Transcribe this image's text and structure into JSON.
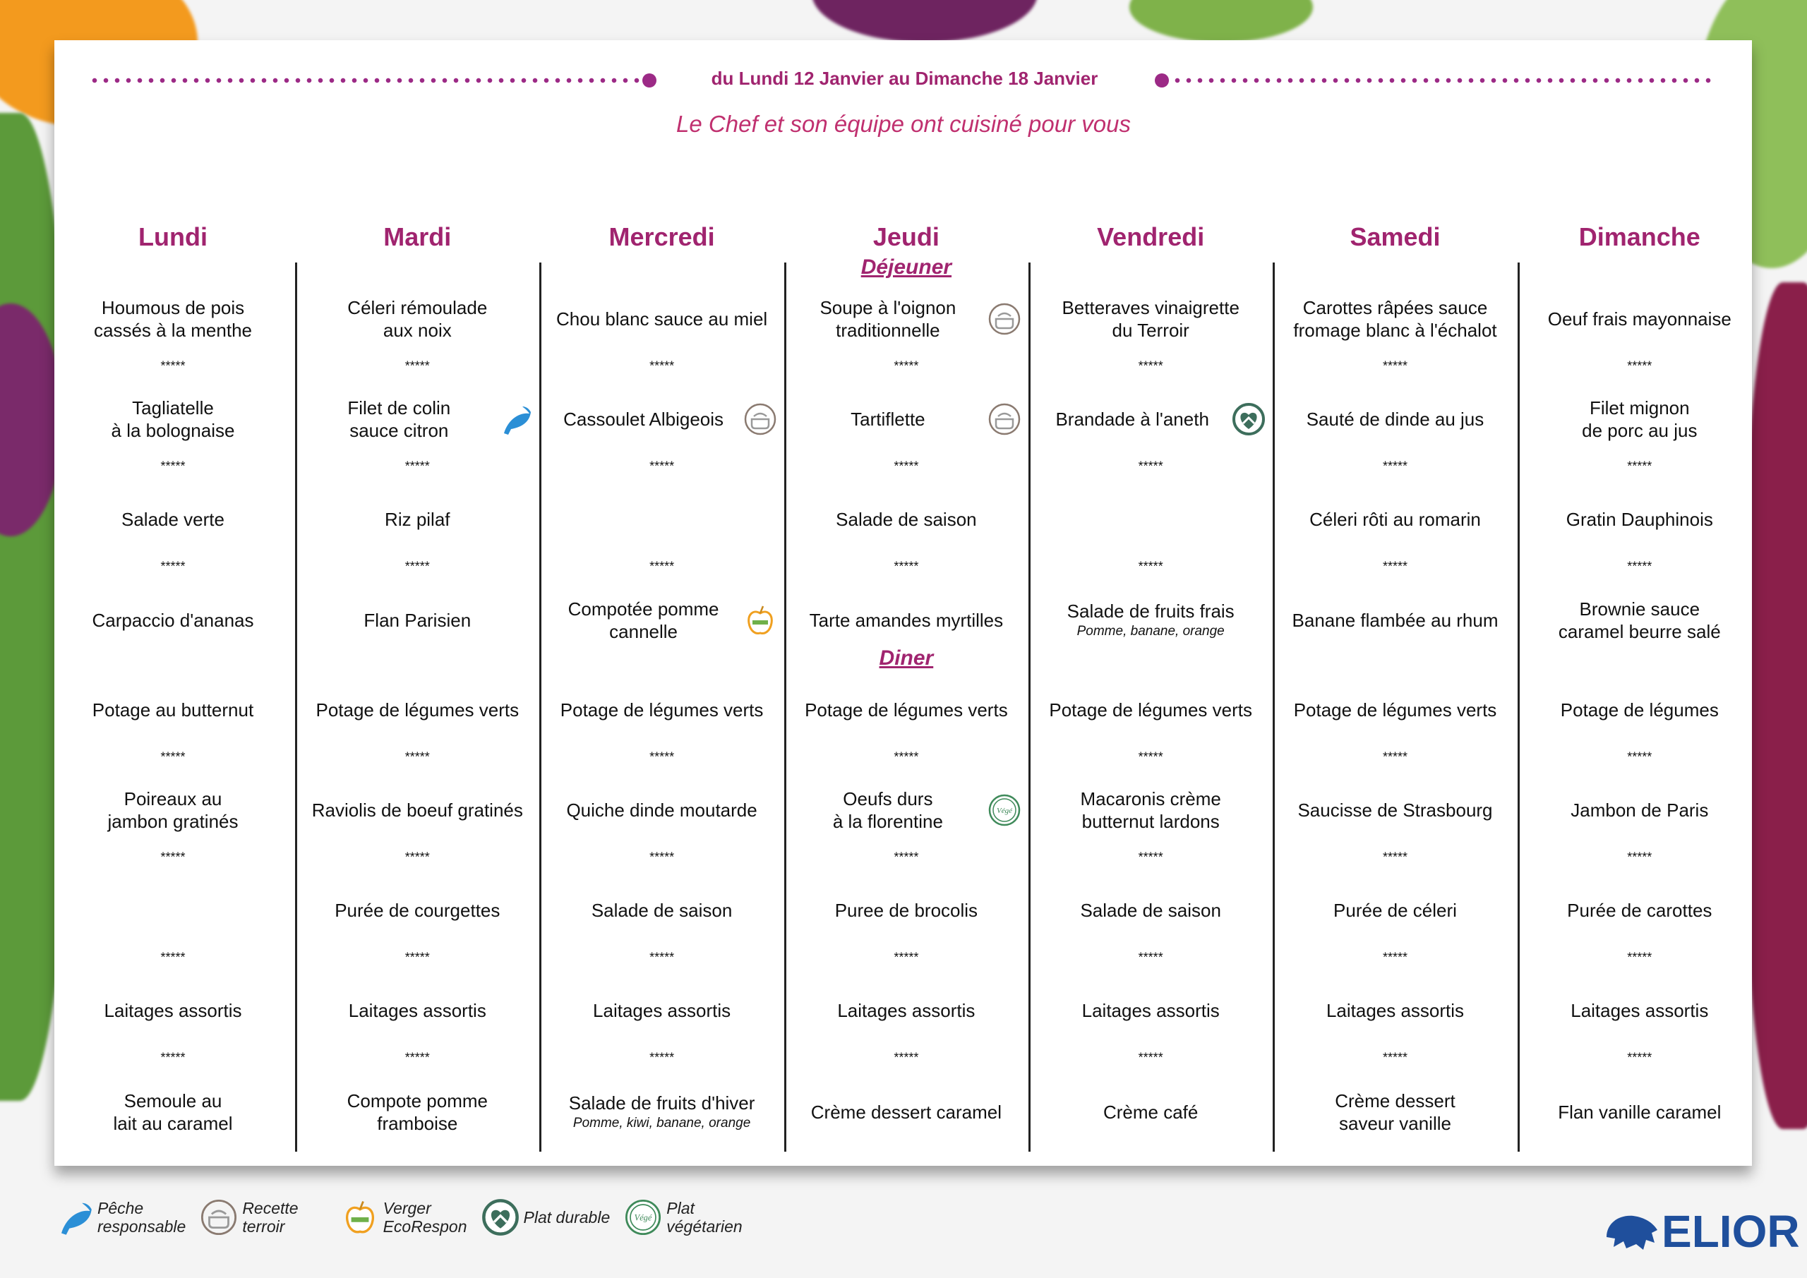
{
  "header": {
    "date_range": "du Lundi 12 Janvier au Dimanche 18 Janvier",
    "subtitle": "Le Chef et son équipe ont cuisiné pour vous"
  },
  "colors": {
    "accent": "#a0246f",
    "dots": "#9c2a86",
    "brand": "#1f4f9c"
  },
  "separator": "*****",
  "meals": {
    "lunch": "Déjeuner",
    "dinner": "Diner"
  },
  "days": [
    {
      "name": "Lundi",
      "lunch": [
        {
          "text": "Houmous de pois\ncassés à la menthe"
        },
        {
          "text": "Tagliatelle\nà la bolognaise"
        },
        {
          "text": "Salade verte"
        },
        {
          "text": "Carpaccio d'ananas"
        }
      ],
      "dinner": [
        {
          "text": "Potage au butternut"
        },
        {
          "text": "Poireaux au\njambon gratinés"
        },
        {
          "text": ""
        },
        {
          "text": "Laitages assortis"
        },
        {
          "text": "Semoule au\nlait au caramel"
        }
      ]
    },
    {
      "name": "Mardi",
      "lunch": [
        {
          "text": "Céleri rémoulade\naux noix"
        },
        {
          "text": "Filet de colin\nsauce citron",
          "icon": "fish-icon"
        },
        {
          "text": "Riz pilaf"
        },
        {
          "text": "Flan Parisien"
        }
      ],
      "dinner": [
        {
          "text": "Potage de légumes verts"
        },
        {
          "text": "Raviolis de boeuf gratinés"
        },
        {
          "text": "Purée de courgettes"
        },
        {
          "text": "Laitages assortis"
        },
        {
          "text": "Compote pomme\nframboise"
        }
      ]
    },
    {
      "name": "Mercredi",
      "lunch": [
        {
          "text": "Chou blanc sauce au miel"
        },
        {
          "text": "Cassoulet Albigeois",
          "icon": "pot-icon"
        },
        {
          "text": ""
        },
        {
          "text": "Compotée pomme\ncannelle",
          "icon": "apple-icon"
        }
      ],
      "dinner": [
        {
          "text": "Potage de légumes verts"
        },
        {
          "text": "Quiche dinde moutarde"
        },
        {
          "text": "Salade de saison"
        },
        {
          "text": "Laitages assortis"
        },
        {
          "text": "Salade de fruits d'hiver",
          "sub": "Pomme, kiwi, banane, orange"
        }
      ]
    },
    {
      "name": "Jeudi",
      "show_meals": true,
      "lunch": [
        {
          "text": "Soupe à l'oignon\ntraditionnelle",
          "icon": "pot-icon"
        },
        {
          "text": "Tartiflette",
          "icon": "pot-icon"
        },
        {
          "text": "Salade de saison"
        },
        {
          "text": "Tarte amandes myrtilles"
        }
      ],
      "dinner": [
        {
          "text": "Potage de légumes verts"
        },
        {
          "text": "Oeufs durs\nà la florentine",
          "icon": "vege-icon"
        },
        {
          "text": "Puree de brocolis"
        },
        {
          "text": "Laitages assortis"
        },
        {
          "text": "Crème dessert caramel"
        }
      ]
    },
    {
      "name": "Vendredi",
      "lunch": [
        {
          "text": "Betteraves vinaigrette\ndu Terroir"
        },
        {
          "text": "Brandade à l'aneth",
          "icon": "heart-icon"
        },
        {
          "text": ""
        },
        {
          "text": "Salade de fruits frais",
          "sub": "Pomme, banane, orange"
        }
      ],
      "dinner": [
        {
          "text": "Potage de légumes verts"
        },
        {
          "text": "Macaronis crème\nbutternut lardons"
        },
        {
          "text": "Salade de saison"
        },
        {
          "text": "Laitages assortis"
        },
        {
          "text": "Crème café"
        }
      ]
    },
    {
      "name": "Samedi",
      "lunch": [
        {
          "text": "Carottes râpées sauce\nfromage blanc à l'échalot"
        },
        {
          "text": "Sauté de dinde au jus"
        },
        {
          "text": "Céleri rôti au romarin"
        },
        {
          "text": "Banane flambée au rhum"
        }
      ],
      "dinner": [
        {
          "text": "Potage de légumes verts"
        },
        {
          "text": "Saucisse de Strasbourg"
        },
        {
          "text": "Purée de céleri"
        },
        {
          "text": "Laitages assortis"
        },
        {
          "text": "Crème dessert\nsaveur vanille"
        }
      ]
    },
    {
      "name": "Dimanche",
      "lunch": [
        {
          "text": "Oeuf frais mayonnaise"
        },
        {
          "text": "Filet mignon\nde porc au jus"
        },
        {
          "text": "Gratin Dauphinois"
        },
        {
          "text": "Brownie sauce\ncaramel beurre salé"
        }
      ],
      "dinner": [
        {
          "text": "Potage de légumes"
        },
        {
          "text": "Jambon de Paris"
        },
        {
          "text": "Purée de carottes"
        },
        {
          "text": "Laitages assortis"
        },
        {
          "text": "Flan vanille caramel"
        }
      ]
    }
  ],
  "legend": [
    {
      "icon": "fish-icon",
      "label": "Pêche\nresponsable"
    },
    {
      "icon": "pot-icon",
      "label": "Recette\nterroir"
    },
    {
      "icon": "apple-icon",
      "label": "Verger\nEcoRespon"
    },
    {
      "icon": "heart-icon",
      "label": "Plat durable"
    },
    {
      "icon": "vege-icon",
      "label": "Plat\nvégétarien"
    }
  ],
  "logo": {
    "text": "ELIOR"
  }
}
